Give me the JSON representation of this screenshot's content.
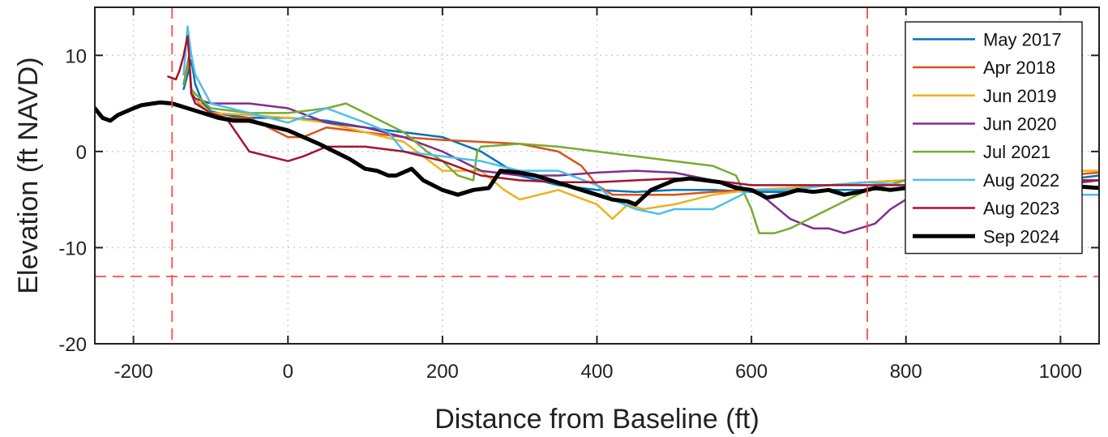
{
  "chart_data": {
    "type": "line",
    "xlabel": "Distance from Baseline (ft)",
    "ylabel": "Elevation (ft NAVD)",
    "xlim": [
      -250,
      1050
    ],
    "ylim": [
      -20,
      15
    ],
    "xticks": [
      -200,
      0,
      200,
      400,
      600,
      800,
      1000
    ],
    "yticks": [
      -20,
      -10,
      0,
      10
    ],
    "grid": true,
    "legend_position": "top-right",
    "reference_lines": [
      {
        "axis": "x",
        "value": -150,
        "style": "dashed",
        "color": "#ff4a4a"
      },
      {
        "axis": "x",
        "value": 750,
        "style": "dashed",
        "color": "#ff4a4a"
      },
      {
        "axis": "y",
        "value": -13,
        "style": "dashed",
        "color": "#ff4a4a"
      }
    ],
    "series": [
      {
        "name": "May 2017",
        "color": "#0072BD",
        "width": 2.5,
        "x": [
          -135,
          -130,
          -125,
          -120,
          -110,
          -100,
          -80,
          -50,
          0,
          50,
          100,
          150,
          200,
          250,
          300,
          350,
          400,
          450,
          500,
          550,
          600,
          650,
          700,
          750,
          800,
          850,
          900,
          1000,
          1050
        ],
        "y": [
          6.5,
          8,
          9.5,
          7,
          5,
          4.2,
          3.8,
          3.5,
          3.5,
          3.2,
          2.5,
          2,
          1.5,
          0,
          -2.5,
          -3.5,
          -4,
          -4.2,
          -4,
          -4,
          -4.2,
          -4.2,
          -4,
          -4,
          -3.8,
          -3.5,
          -3,
          -3,
          -2.5
        ]
      },
      {
        "name": "Apr 2018",
        "color": "#D95319",
        "width": 2.5,
        "x": [
          -135,
          -128,
          -125,
          -120,
          -110,
          -100,
          -80,
          -50,
          0,
          20,
          50,
          100,
          150,
          200,
          250,
          300,
          350,
          380,
          400,
          420,
          450,
          500,
          550,
          600,
          650,
          700,
          750,
          800,
          850,
          900,
          1000,
          1050
        ],
        "y": [
          7,
          10,
          6,
          5.5,
          4.5,
          4,
          3.5,
          3.5,
          1.5,
          1.5,
          2.5,
          2,
          1.5,
          1.2,
          1,
          0.8,
          0,
          -1.5,
          -3.5,
          -4.5,
          -4.5,
          -4.5,
          -4.2,
          -4,
          -3.8,
          -3.5,
          -3.2,
          -3,
          -3,
          -2.5,
          -2.5,
          -2.2
        ]
      },
      {
        "name": "Jun 2019",
        "color": "#EDB120",
        "width": 2.5,
        "x": [
          -135,
          -128,
          -125,
          -120,
          -100,
          -50,
          0,
          50,
          100,
          150,
          200,
          250,
          280,
          300,
          350,
          400,
          420,
          440,
          460,
          500,
          550,
          600,
          650,
          700,
          750,
          800,
          850,
          900,
          1000,
          1050
        ],
        "y": [
          7,
          9.5,
          6.5,
          5.5,
          4,
          3.8,
          3.5,
          3,
          2,
          1,
          -2,
          -2,
          -4,
          -5,
          -4,
          -5.5,
          -7,
          -5.5,
          -6,
          -5.5,
          -4.5,
          -4,
          -3.8,
          -3.5,
          -3.2,
          -3,
          -3,
          -2.5,
          -2,
          -2
        ]
      },
      {
        "name": "Jun 2020",
        "color": "#7E2F8E",
        "width": 2.5,
        "x": [
          -135,
          -128,
          -125,
          -120,
          -100,
          -50,
          0,
          50,
          100,
          150,
          200,
          250,
          300,
          350,
          400,
          450,
          500,
          550,
          600,
          620,
          650,
          680,
          700,
          720,
          740,
          760,
          780,
          800,
          850,
          900,
          1000,
          1050
        ],
        "y": [
          7,
          9.5,
          6,
          5.5,
          5,
          5,
          4.5,
          3,
          2.5,
          1.5,
          0,
          -2,
          -2.5,
          -2.5,
          -2.2,
          -2,
          -2.2,
          -3,
          -4,
          -5,
          -7,
          -8,
          -8,
          -8.5,
          -8,
          -7.5,
          -6,
          -5,
          -4.5,
          -4,
          -3.5,
          -3
        ]
      },
      {
        "name": "Jul 2021",
        "color": "#77AC30",
        "width": 2.5,
        "x": [
          -135,
          -128,
          -125,
          -120,
          -100,
          -50,
          0,
          50,
          75,
          100,
          150,
          180,
          200,
          220,
          240,
          245,
          250,
          300,
          350,
          400,
          450,
          500,
          550,
          580,
          600,
          610,
          630,
          650,
          700,
          750,
          800,
          850,
          900,
          1000,
          1050
        ],
        "y": [
          7,
          9.5,
          6.5,
          6,
          4.5,
          4,
          4,
          4.5,
          5,
          4,
          2,
          0,
          -1,
          -2.5,
          -3,
          0,
          0.5,
          0.8,
          0.5,
          0,
          -0.5,
          -1,
          -1.5,
          -2.5,
          -6,
          -8.5,
          -8.5,
          -8,
          -6,
          -4,
          -3,
          -3,
          -3.5,
          -3,
          -3
        ]
      },
      {
        "name": "Aug 2022",
        "color": "#4DBEEE",
        "width": 2.5,
        "x": [
          -135,
          -130,
          -125,
          -120,
          -100,
          -50,
          0,
          50,
          100,
          130,
          150,
          200,
          250,
          300,
          350,
          400,
          420,
          450,
          480,
          500,
          520,
          550,
          600,
          650,
          700,
          750,
          800,
          850,
          900,
          1000,
          1050
        ],
        "y": [
          8,
          13,
          10,
          8,
          5,
          4,
          3,
          4.5,
          3,
          2,
          0,
          -0.5,
          -1,
          -2,
          -2,
          -3.5,
          -5,
          -6,
          -6.5,
          -6,
          -6,
          -6,
          -4,
          -4,
          -3.5,
          -3.2,
          -3.5,
          -3.8,
          -4,
          -4.5,
          -4.5
        ]
      },
      {
        "name": "Aug 2023",
        "color": "#A2142F",
        "width": 2.5,
        "x": [
          -155,
          -145,
          -140,
          -135,
          -130,
          -128,
          -125,
          -120,
          -100,
          -80,
          -50,
          0,
          20,
          50,
          100,
          150,
          200,
          250,
          300,
          350,
          400,
          450,
          500,
          550,
          600,
          650,
          700,
          750,
          800,
          850,
          900,
          1000,
          1050
        ],
        "y": [
          7.8,
          7.5,
          8.5,
          10,
          12,
          10,
          6,
          5,
          4,
          3.5,
          0,
          -1,
          -0.5,
          0.5,
          0.5,
          0,
          -1,
          -2.5,
          -3,
          -3.2,
          -3.2,
          -3,
          -2.8,
          -3,
          -3.5,
          -3.5,
          -3.5,
          -3.5,
          -3.5,
          -3.2,
          -3,
          -3,
          -3
        ]
      },
      {
        "name": "Sep 2024",
        "color": "#000000",
        "width": 5,
        "x": [
          -250,
          -240,
          -230,
          -220,
          -200,
          -190,
          -175,
          -165,
          -150,
          -130,
          -110,
          -90,
          -70,
          -50,
          -30,
          0,
          20,
          40,
          60,
          80,
          100,
          115,
          130,
          140,
          160,
          175,
          200,
          220,
          240,
          260,
          275,
          300,
          320,
          340,
          360,
          380,
          400,
          420,
          440,
          450,
          470,
          500,
          520,
          540,
          560,
          580,
          600,
          620,
          640,
          660,
          680,
          700,
          720,
          740,
          760,
          780,
          800,
          850,
          900,
          1000,
          1050
        ],
        "y": [
          4.5,
          3.5,
          3.2,
          3.8,
          4.5,
          4.8,
          5,
          5.1,
          5,
          4.5,
          4,
          3.5,
          3.2,
          3.2,
          2.8,
          2.2,
          1.5,
          0.8,
          0,
          -0.8,
          -1.8,
          -2,
          -2.5,
          -2.5,
          -1.8,
          -3,
          -4,
          -4.5,
          -4,
          -3.8,
          -2,
          -2.2,
          -2.5,
          -3,
          -3.5,
          -4,
          -4.5,
          -5,
          -5.2,
          -5.5,
          -4,
          -3,
          -2.8,
          -3,
          -3.2,
          -3.8,
          -4,
          -4.8,
          -4.5,
          -4,
          -4.2,
          -4,
          -4.5,
          -4.2,
          -3.8,
          -4,
          -3.8,
          -3.5,
          -3.3,
          -3.5,
          -3.8
        ]
      }
    ]
  }
}
